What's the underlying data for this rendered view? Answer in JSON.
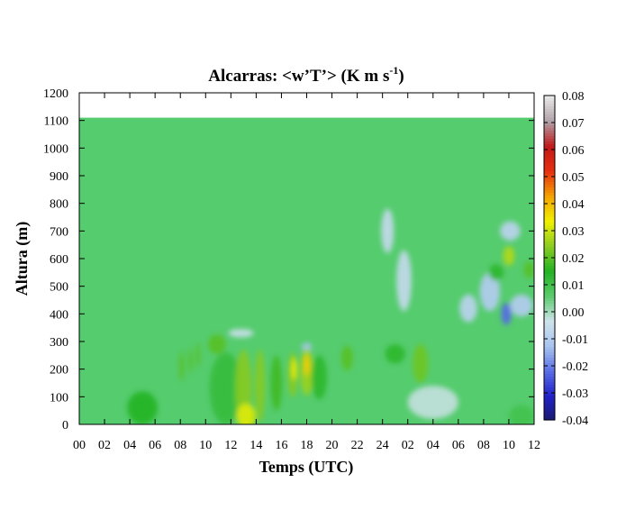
{
  "chart_data": {
    "type": "heatmap",
    "title": "Alcarras: <w’T’> (K m s",
    "title_superscript": "-1",
    "title_suffix": ")",
    "xlabel": "Temps (UTC)",
    "ylabel": "Altura (m)",
    "x_tick_labels": [
      "00",
      "02",
      "04",
      "06",
      "08",
      "10",
      "12",
      "14",
      "16",
      "18",
      "20",
      "22",
      "24",
      "02",
      "04",
      "06",
      "08",
      "10",
      "12"
    ],
    "x_range_hours": [
      0,
      36
    ],
    "y_ticks": [
      0,
      100,
      200,
      300,
      400,
      500,
      600,
      700,
      800,
      900,
      1000,
      1100,
      1200
    ],
    "y_range": [
      0,
      1200
    ],
    "data_top_height": 1110,
    "colorbar": {
      "ticks": [
        "0.08",
        "0.07",
        "0.06",
        "0.05",
        "0.04",
        "0.03",
        "0.02",
        "0.01",
        "0.00",
        "-0.01",
        "-0.02",
        "-0.03",
        "-0.04"
      ],
      "range": [
        -0.04,
        0.08
      ],
      "colormap": "#1a1a6e,#2020c8,#5a6ee6,#a8c4f0,#cfe2ea,#5bcc6e,#22b322,#8ccc22,#f0f000,#f5a300,#e83010,#c21818,#b0a0a8,#e8e8e8",
      "background_value_color": "#55cc6e"
    },
    "features": [
      {
        "t": 5.0,
        "z": 60,
        "dt": 2.4,
        "dz": 120,
        "v": 0.015
      },
      {
        "t": 8.1,
        "z": 210,
        "dt": 0.35,
        "dz": 110,
        "v": 0.02
      },
      {
        "t": 8.8,
        "z": 230,
        "dt": 0.3,
        "dz": 90,
        "v": 0.02
      },
      {
        "t": 9.4,
        "z": 250,
        "dt": 0.3,
        "dz": 90,
        "v": 0.02
      },
      {
        "t": 10.9,
        "z": 290,
        "dt": 1.4,
        "dz": 70,
        "v": 0.02
      },
      {
        "t": 11.6,
        "z": 130,
        "dt": 2.6,
        "dz": 260,
        "v": 0.012
      },
      {
        "t": 13.0,
        "z": 130,
        "dt": 1.3,
        "dz": 280,
        "v": 0.024
      },
      {
        "t": 13.2,
        "z": 30,
        "dt": 1.5,
        "dz": 90,
        "v": 0.032
      },
      {
        "t": 14.3,
        "z": 140,
        "dt": 0.8,
        "dz": 260,
        "v": 0.024
      },
      {
        "t": 15.6,
        "z": 150,
        "dt": 0.9,
        "dz": 200,
        "v": 0.018
      },
      {
        "t": 16.9,
        "z": 180,
        "dt": 0.8,
        "dz": 160,
        "v": 0.024
      },
      {
        "t": 17.0,
        "z": 200,
        "dt": 0.4,
        "dz": 80,
        "v": 0.034
      },
      {
        "t": 18.0,
        "z": 190,
        "dt": 1.0,
        "dz": 170,
        "v": 0.026
      },
      {
        "t": 18.0,
        "z": 215,
        "dt": 0.5,
        "dz": 80,
        "v": 0.038
      },
      {
        "t": 19.0,
        "z": 170,
        "dt": 1.2,
        "dz": 160,
        "v": 0.014
      },
      {
        "t": 21.2,
        "z": 240,
        "dt": 0.9,
        "dz": 90,
        "v": 0.02
      },
      {
        "t": 25.0,
        "z": 255,
        "dt": 1.6,
        "dz": 70,
        "v": 0.014
      },
      {
        "t": 27.0,
        "z": 220,
        "dt": 1.2,
        "dz": 140,
        "v": 0.022
      },
      {
        "t": 34.0,
        "z": 610,
        "dt": 0.9,
        "dz": 70,
        "v": 0.028
      },
      {
        "t": 35.6,
        "z": 560,
        "dt": 0.8,
        "dz": 60,
        "v": 0.02
      },
      {
        "t": 33.0,
        "z": 550,
        "dt": 1.2,
        "dz": 60,
        "v": 0.014
      },
      {
        "t": 35.0,
        "z": 30,
        "dt": 2.0,
        "dz": 80,
        "v": 0.01
      }
    ],
    "cool_features": [
      {
        "t": 24.4,
        "z": 700,
        "dt": 1.0,
        "dz": 160,
        "v": -0.006
      },
      {
        "t": 25.7,
        "z": 520,
        "dt": 1.2,
        "dz": 220,
        "v": -0.006
      },
      {
        "t": 30.8,
        "z": 420,
        "dt": 1.4,
        "dz": 100,
        "v": -0.008
      },
      {
        "t": 32.5,
        "z": 480,
        "dt": 1.6,
        "dz": 140,
        "v": -0.01
      },
      {
        "t": 33.8,
        "z": 400,
        "dt": 0.8,
        "dz": 80,
        "v": -0.022
      },
      {
        "t": 35.0,
        "z": 430,
        "dt": 1.8,
        "dz": 80,
        "v": -0.01
      },
      {
        "t": 34.1,
        "z": 700,
        "dt": 1.6,
        "dz": 70,
        "v": -0.008
      },
      {
        "t": 18.0,
        "z": 280,
        "dt": 0.8,
        "dz": 30,
        "v": -0.012
      },
      {
        "t": 12.8,
        "z": 330,
        "dt": 2.0,
        "dz": 30,
        "v": -0.004
      },
      {
        "t": 28.0,
        "z": 80,
        "dt": 4.0,
        "dz": 120,
        "v": -0.002
      }
    ]
  }
}
